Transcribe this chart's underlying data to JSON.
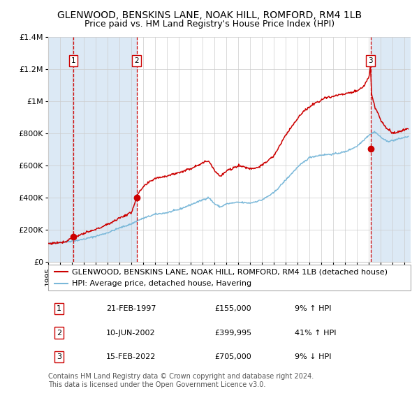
{
  "title": "GLENWOOD, BENSKINS LANE, NOAK HILL, ROMFORD, RM4 1LB",
  "subtitle": "Price paid vs. HM Land Registry's House Price Index (HPI)",
  "legend_line1": "GLENWOOD, BENSKINS LANE, NOAK HILL, ROMFORD, RM4 1LB (detached house)",
  "legend_line2": "HPI: Average price, detached house, Havering",
  "transactions": [
    {
      "num": 1,
      "date": "21-FEB-1997",
      "price": 155000,
      "pct": "9%",
      "dir": "↑",
      "year": 1997.13
    },
    {
      "num": 2,
      "date": "10-JUN-2002",
      "price": 399995,
      "pct": "41%",
      "dir": "↑",
      "year": 2002.44
    },
    {
      "num": 3,
      "date": "15-FEB-2022",
      "price": 705000,
      "pct": "9%",
      "dir": "↓",
      "year": 2022.13
    }
  ],
  "hpi_color": "#7ab8d9",
  "price_color": "#cc0000",
  "dot_color": "#cc0000",
  "vline_color": "#cc0000",
  "bg_shaded_color": "#dce9f5",
  "grid_color": "#cccccc",
  "ylim": [
    0,
    1400000
  ],
  "xlim_start": 1995.0,
  "xlim_end": 2025.5,
  "footer_text": "Contains HM Land Registry data © Crown copyright and database right 2024.\nThis data is licensed under the Open Government Licence v3.0.",
  "title_fontsize": 10,
  "subtitle_fontsize": 9,
  "tick_fontsize": 8,
  "legend_fontsize": 8,
  "footer_fontsize": 7
}
